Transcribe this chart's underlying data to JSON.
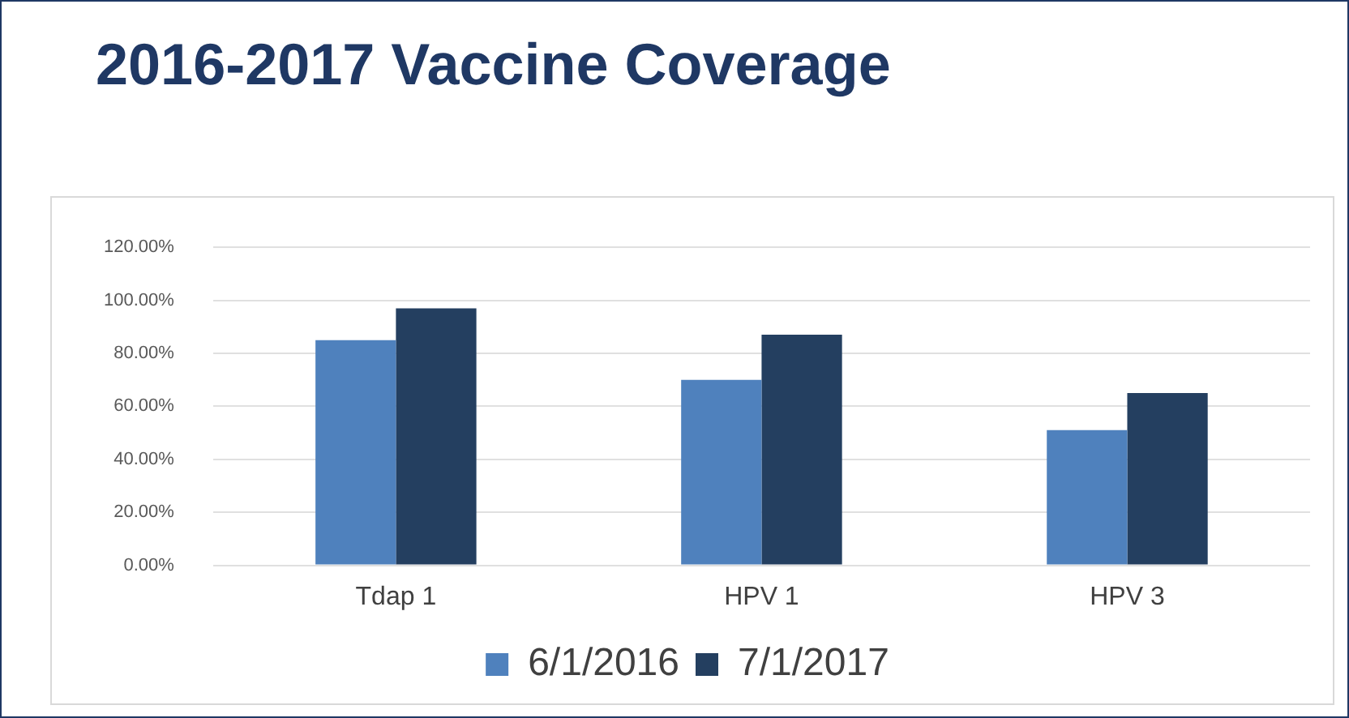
{
  "chart_data": {
    "type": "bar",
    "title": "2016-2017 Vaccine Coverage",
    "categories": [
      "Tdap 1",
      "HPV 1",
      "HPV 3"
    ],
    "series": [
      {
        "name": "6/1/2016",
        "color": "#4f81bd",
        "values": [
          85,
          70,
          51
        ]
      },
      {
        "name": "7/1/2017",
        "color": "#243f60",
        "values": [
          97,
          87,
          65
        ]
      }
    ],
    "ylim": [
      0,
      120
    ],
    "yticks": [
      {
        "value": 0,
        "label": "0.00%"
      },
      {
        "value": 20,
        "label": "20.00%"
      },
      {
        "value": 40,
        "label": "40.00%"
      },
      {
        "value": 60,
        "label": "60.00%"
      },
      {
        "value": 80,
        "label": "80.00%"
      },
      {
        "value": 100,
        "label": "100.00%"
      },
      {
        "value": 120,
        "label": "120.00%"
      }
    ],
    "grid": "y",
    "legend": "bottom"
  }
}
